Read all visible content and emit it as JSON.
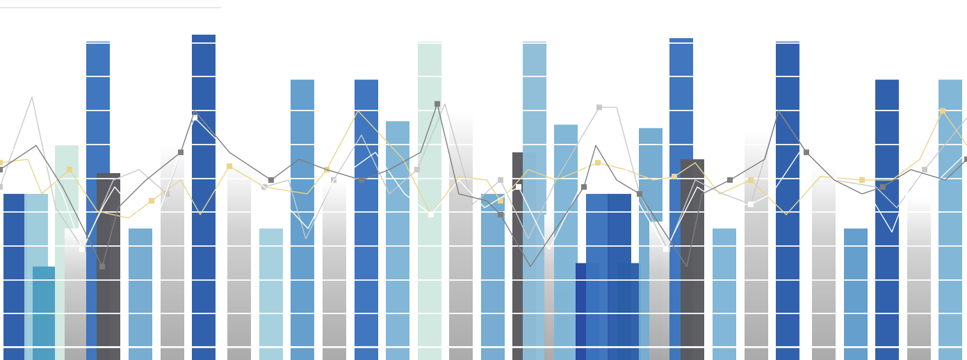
{
  "chart_data": {
    "type": "bar",
    "title": "",
    "xlabel": "",
    "ylabel": "",
    "ylim": [
      0,
      100
    ],
    "grid": true,
    "legend": "none",
    "bars": [
      {
        "x": 22,
        "w": 34,
        "top": 48,
        "fill": "#2a5caa"
      },
      {
        "x": 52,
        "w": 34,
        "top": 48,
        "fill": "#9ccbdb"
      },
      {
        "x": 64,
        "w": 34,
        "top": 27,
        "fill": "#4a9cc0"
      },
      {
        "x": 96,
        "w": 34,
        "top": 62,
        "fill": "#cfe8e0"
      },
      {
        "x": 110,
        "w": 34,
        "top": 38,
        "fill": "gradGray"
      },
      {
        "x": 141,
        "w": 34,
        "top": 92,
        "fill": "#3a73bd"
      },
      {
        "x": 156,
        "w": 34,
        "top": 54,
        "fill": "#5a5a5e"
      },
      {
        "x": 202,
        "w": 34,
        "top": 38,
        "fill": "#72aad0"
      },
      {
        "x": 248,
        "w": 34,
        "top": 62,
        "fill": "gradGray"
      },
      {
        "x": 293,
        "w": 34,
        "top": 94,
        "fill": "#2a5caa"
      },
      {
        "x": 344,
        "w": 34,
        "top": 57,
        "fill": "gradGray"
      },
      {
        "x": 390,
        "w": 34,
        "top": 38,
        "fill": "#a4d0de"
      },
      {
        "x": 435,
        "w": 34,
        "top": 81,
        "fill": "#5f9ccb"
      },
      {
        "x": 481,
        "w": 34,
        "top": 52,
        "fill": "gradGray"
      },
      {
        "x": 527,
        "w": 34,
        "top": 81,
        "fill": "#3a73bd"
      },
      {
        "x": 572,
        "w": 34,
        "top": 69,
        "fill": "#7eb5d6"
      },
      {
        "x": 618,
        "w": 34,
        "top": 92,
        "fill": "#cfe8e0"
      },
      {
        "x": 663,
        "w": 34,
        "top": 72,
        "fill": "gradGray"
      },
      {
        "x": 709,
        "w": 34,
        "top": 48,
        "fill": "#72aad0"
      },
      {
        "x": 754,
        "w": 34,
        "top": 60,
        "fill": "#5a5a5e"
      },
      {
        "x": 769,
        "w": 34,
        "top": 92,
        "fill": "#8dbdd8"
      },
      {
        "x": 800,
        "w": 34,
        "top": 42,
        "fill": "gradGray"
      },
      {
        "x": 814,
        "w": 34,
        "top": 68,
        "fill": "#7eb5d6"
      },
      {
        "x": 845,
        "w": 34,
        "top": 28,
        "fill": "#2447a0"
      },
      {
        "x": 860,
        "w": 34,
        "top": 48,
        "fill": "#3a73bd"
      },
      {
        "x": 891,
        "w": 34,
        "top": 48,
        "fill": "#2a5caa"
      },
      {
        "x": 905,
        "w": 34,
        "top": 28,
        "fill": "#2a5ea6"
      },
      {
        "x": 936,
        "w": 34,
        "top": 67,
        "fill": "#72aad0"
      },
      {
        "x": 951,
        "w": 34,
        "top": 40,
        "fill": "gradGray"
      },
      {
        "x": 980,
        "w": 34,
        "top": 93,
        "fill": "#3a73bd"
      },
      {
        "x": 996,
        "w": 34,
        "top": 58,
        "fill": "#5a5a5e"
      },
      {
        "x": 1042,
        "w": 34,
        "top": 38,
        "fill": "#7eb5d6"
      },
      {
        "x": 1088,
        "w": 34,
        "top": 66,
        "fill": "gradGray"
      },
      {
        "x": 1133,
        "w": 34,
        "top": 92,
        "fill": "#2a5caa"
      },
      {
        "x": 1185,
        "w": 34,
        "top": 56,
        "fill": "gradGray"
      },
      {
        "x": 1231,
        "w": 34,
        "top": 38,
        "fill": "#5f9ccb"
      },
      {
        "x": 1276,
        "w": 34,
        "top": 81,
        "fill": "#2a5caa"
      },
      {
        "x": 1322,
        "w": 34,
        "top": 47,
        "fill": "gradGray"
      },
      {
        "x": 1367,
        "w": 34,
        "top": 81,
        "fill": "#7eb5d6"
      }
    ],
    "series": [
      {
        "color": "#ead58a",
        "points": [
          [
            0,
            57
          ],
          [
            40,
            58
          ],
          [
            60,
            48
          ],
          [
            100,
            55
          ],
          [
            140,
            43
          ],
          [
            185,
            41
          ],
          [
            218,
            46
          ],
          [
            260,
            52
          ],
          [
            288,
            42
          ],
          [
            330,
            56
          ],
          [
            380,
            50
          ],
          [
            442,
            48
          ],
          [
            470,
            55
          ],
          [
            515,
            72
          ],
          [
            580,
            58
          ],
          [
            620,
            42
          ],
          [
            660,
            53
          ],
          [
            700,
            52
          ],
          [
            720,
            46
          ],
          [
            760,
            55
          ],
          [
            800,
            52
          ],
          [
            860,
            57
          ],
          [
            900,
            55
          ],
          [
            940,
            52
          ],
          [
            970,
            53
          ],
          [
            1000,
            57
          ],
          [
            1035,
            48
          ],
          [
            1080,
            52
          ],
          [
            1131,
            42
          ],
          [
            1180,
            53
          ],
          [
            1240,
            52
          ],
          [
            1283,
            52
          ],
          [
            1323,
            58
          ],
          [
            1356,
            72
          ],
          [
            1391,
            62
          ]
        ]
      },
      {
        "color": "#c9c9c9",
        "points": [
          [
            0,
            50
          ],
          [
            46,
            76
          ],
          [
            80,
            44
          ],
          [
            120,
            32
          ],
          [
            163,
            52
          ],
          [
            200,
            55
          ],
          [
            240,
            48
          ],
          [
            280,
            72
          ],
          [
            330,
            60
          ],
          [
            380,
            50
          ],
          [
            415,
            52
          ],
          [
            440,
            35
          ],
          [
            480,
            52
          ],
          [
            520,
            65
          ],
          [
            560,
            48
          ],
          [
            600,
            55
          ],
          [
            640,
            74
          ],
          [
            680,
            45
          ],
          [
            720,
            52
          ],
          [
            760,
            35
          ],
          [
            800,
            52
          ],
          [
            862,
            73
          ],
          [
            887,
            73
          ],
          [
            920,
            48
          ],
          [
            960,
            32
          ],
          [
            1000,
            52
          ],
          [
            1040,
            48
          ],
          [
            1080,
            45
          ],
          [
            1120,
            72
          ],
          [
            1160,
            60
          ],
          [
            1200,
            52
          ],
          [
            1260,
            50
          ],
          [
            1290,
            44
          ],
          [
            1330,
            55
          ],
          [
            1391,
            70
          ]
        ]
      },
      {
        "color": "#ffffff",
        "points": [
          [
            0,
            60
          ],
          [
            52,
            62
          ],
          [
            90,
            48
          ],
          [
            118,
            32
          ],
          [
            150,
            45
          ],
          [
            165,
            50
          ],
          [
            190,
            44
          ],
          [
            220,
            38
          ],
          [
            260,
            60
          ],
          [
            280,
            70
          ],
          [
            330,
            60
          ],
          [
            380,
            50
          ],
          [
            410,
            45
          ],
          [
            443,
            38
          ],
          [
            480,
            52
          ],
          [
            505,
            55
          ],
          [
            540,
            60
          ],
          [
            582,
            48
          ],
          [
            620,
            42
          ],
          [
            660,
            52
          ],
          [
            697,
            44
          ],
          [
            746,
            50
          ],
          [
            790,
            32
          ],
          [
            830,
            48
          ],
          [
            857,
            62
          ],
          [
            887,
            62
          ],
          [
            920,
            45
          ],
          [
            958,
            32
          ],
          [
            1003,
            50
          ],
          [
            1040,
            45
          ],
          [
            1080,
            45
          ],
          [
            1110,
            48
          ],
          [
            1150,
            60
          ],
          [
            1200,
            52
          ],
          [
            1250,
            48
          ],
          [
            1283,
            37
          ],
          [
            1318,
            55
          ],
          [
            1350,
            52
          ],
          [
            1391,
            60
          ]
        ]
      },
      {
        "color": "#7e7e7e",
        "points": [
          [
            0,
            55
          ],
          [
            52,
            62
          ],
          [
            90,
            50
          ],
          [
            147,
            27
          ],
          [
            170,
            44
          ],
          [
            210,
            52
          ],
          [
            260,
            60
          ],
          [
            280,
            72
          ],
          [
            330,
            60
          ],
          [
            390,
            52
          ],
          [
            430,
            58
          ],
          [
            470,
            55
          ],
          [
            520,
            52
          ],
          [
            560,
            55
          ],
          [
            605,
            60
          ],
          [
            629,
            74
          ],
          [
            660,
            48
          ],
          [
            700,
            46
          ],
          [
            720,
            42
          ],
          [
            763,
            27
          ],
          [
            800,
            38
          ],
          [
            840,
            50
          ],
          [
            857,
            62
          ],
          [
            887,
            52
          ],
          [
            920,
            48
          ],
          [
            988,
            27
          ],
          [
            1010,
            48
          ],
          [
            1050,
            52
          ],
          [
            1100,
            58
          ],
          [
            1120,
            72
          ],
          [
            1160,
            60
          ],
          [
            1200,
            52
          ],
          [
            1240,
            48
          ],
          [
            1270,
            50
          ],
          [
            1310,
            55
          ],
          [
            1360,
            52
          ],
          [
            1391,
            58
          ]
        ]
      }
    ]
  }
}
